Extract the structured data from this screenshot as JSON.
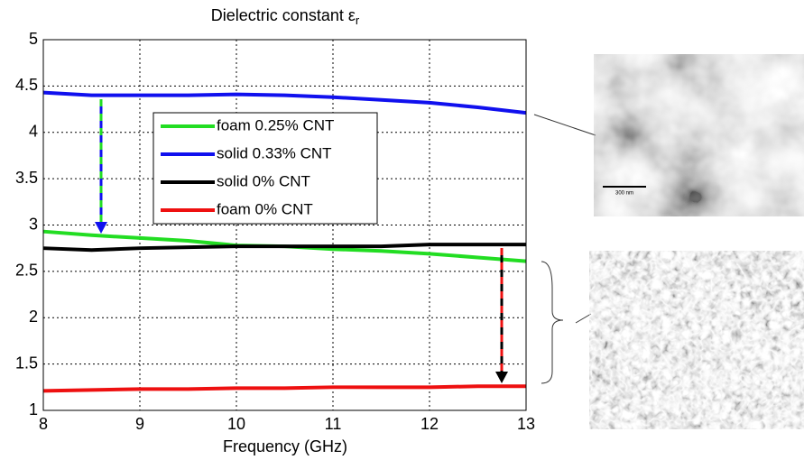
{
  "chart_data": {
    "type": "line",
    "title": "Dielectric constant ε",
    "title_subscript": "r",
    "x_label": "Frequency (GHz)",
    "x": [
      8,
      8.5,
      9,
      9.5,
      10,
      10.5,
      11,
      11.5,
      12,
      12.5,
      13
    ],
    "series": [
      {
        "name": "foam 0.25% CNT",
        "color": "#22dd22",
        "values": [
          2.93,
          2.89,
          2.86,
          2.83,
          2.78,
          2.77,
          2.74,
          2.72,
          2.69,
          2.65,
          2.61
        ]
      },
      {
        "name": "solid 0.33% CNT",
        "color": "#1010ee",
        "values": [
          4.43,
          4.4,
          4.4,
          4.4,
          4.41,
          4.4,
          4.38,
          4.35,
          4.32,
          4.27,
          4.21
        ]
      },
      {
        "name": "solid 0% CNT",
        "color": "#000000",
        "values": [
          2.75,
          2.73,
          2.75,
          2.76,
          2.77,
          2.77,
          2.77,
          2.77,
          2.79,
          2.79,
          2.79
        ]
      },
      {
        "name": "foam 0% CNT",
        "color": "#ee1010",
        "values": [
          1.21,
          1.22,
          1.23,
          1.23,
          1.24,
          1.24,
          1.25,
          1.25,
          1.25,
          1.26,
          1.26
        ]
      }
    ],
    "xlim": [
      8,
      13
    ],
    "xticks": [
      8,
      9,
      10,
      11,
      12,
      13
    ],
    "ylim": [
      1,
      5
    ],
    "yticks": [
      1,
      1.5,
      2,
      2.5,
      3,
      3.5,
      4,
      4.5,
      5
    ],
    "grid": true,
    "legend": "upper left",
    "image_scale_label": "300 nm"
  }
}
